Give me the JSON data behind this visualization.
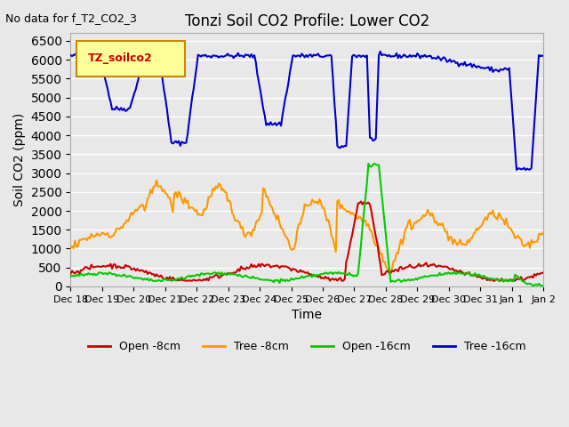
{
  "title": "Tonzi Soil CO2 Profile: Lower CO2",
  "no_data_text": "No data for f_T2_CO2_3",
  "legend_label_text": "TZ_soilco2",
  "xlabel": "Time",
  "ylabel": "Soil CO2 (ppm)",
  "ylim": [
    0,
    6700
  ],
  "yticks": [
    0,
    500,
    1000,
    1500,
    2000,
    2500,
    3000,
    3500,
    4000,
    4500,
    5000,
    5500,
    6000,
    6500
  ],
  "xtick_labels": [
    "Dec 18",
    "Dec 19",
    "Dec 20",
    "Dec 21",
    "Dec 22",
    "Dec 23",
    "Dec 24",
    "Dec 25",
    "Dec 26",
    "Dec 27",
    "Dec 28",
    "Dec 29",
    "Dec 30",
    "Dec 31",
    "Jan 1",
    "Jan 2"
  ],
  "background_color": "#e8e8e8",
  "plot_bg_color": "#e8e8e8",
  "grid_color": "#ffffff",
  "colors": {
    "open_8cm": "#cc0000",
    "tree_8cm": "#ff9900",
    "open_16cm": "#00cc00",
    "tree_16cm": "#0000cc"
  },
  "legend_entries": [
    "Open -8cm",
    "Tree -8cm",
    "Open -16cm",
    "Tree -16cm"
  ]
}
